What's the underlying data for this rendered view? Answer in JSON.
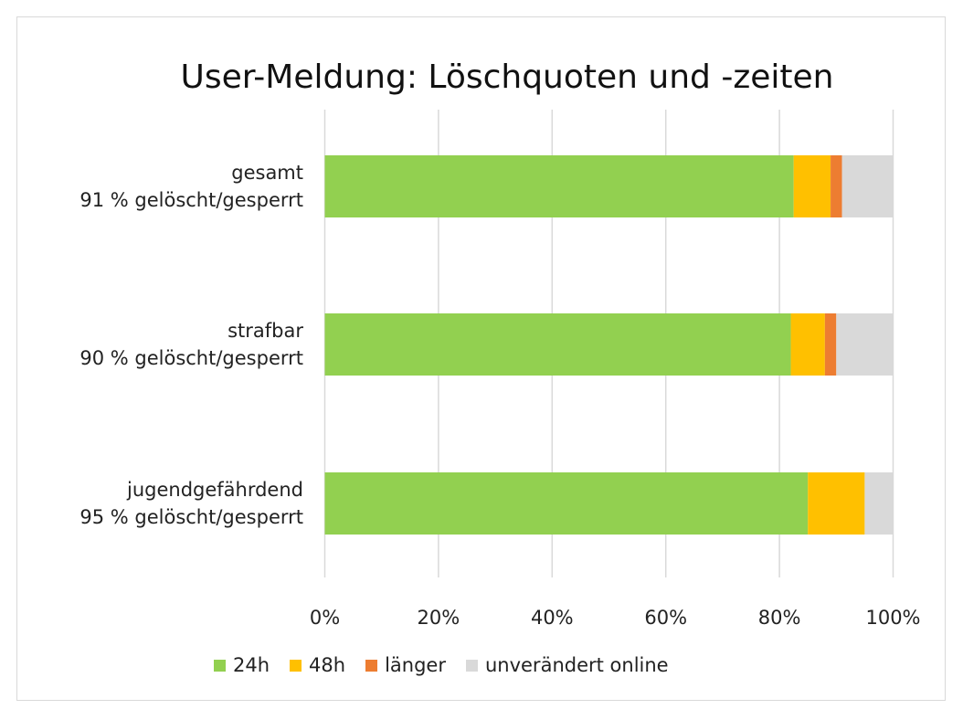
{
  "chart_data": {
    "type": "bar",
    "orientation": "horizontal",
    "stacked": "percent",
    "title": "User-Meldung: Löschquoten und -zeiten",
    "categories": [
      {
        "name": "gesamt",
        "sub": "91 % gelöscht/gesperrt"
      },
      {
        "name": "strafbar",
        "sub": "90 % gelöscht/gesperrt"
      },
      {
        "name": "jugendgefährdend",
        "sub": "95 % gelöscht/gesperrt"
      }
    ],
    "series": [
      {
        "name": "24h",
        "color": "#92d050",
        "values": [
          82.5,
          82,
          85
        ]
      },
      {
        "name": "48h",
        "color": "#ffc000",
        "values": [
          6.5,
          6,
          10
        ]
      },
      {
        "name": "länger",
        "color": "#ed7d31",
        "values": [
          2,
          2,
          0
        ]
      },
      {
        "name": "unverändert online",
        "color": "#d9d9d9",
        "values": [
          9,
          10,
          5
        ]
      }
    ],
    "xlim": [
      0,
      100
    ],
    "xticks": [
      "0%",
      "20%",
      "40%",
      "60%",
      "80%",
      "100%"
    ],
    "grid": true,
    "legend": "bottom"
  }
}
